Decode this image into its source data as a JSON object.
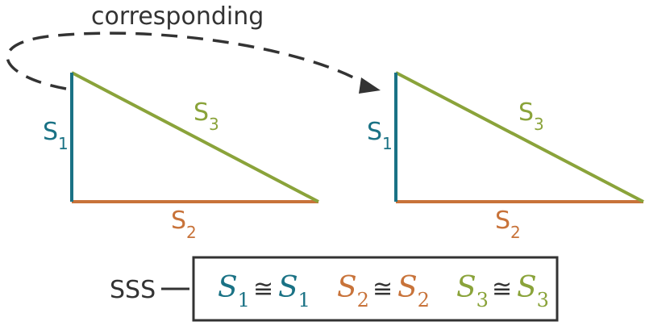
{
  "colors": {
    "s1": "#1a7285",
    "s2": "#c8733a",
    "s3": "#8aa33a",
    "ink": "#333333"
  },
  "arrow_label": "corresponding",
  "triangles": [
    {
      "sides": [
        {
          "letter": "S",
          "sub": "1"
        },
        {
          "letter": "S",
          "sub": "2"
        },
        {
          "letter": "S",
          "sub": "3"
        }
      ]
    },
    {
      "sides": [
        {
          "letter": "S",
          "sub": "1"
        },
        {
          "letter": "S",
          "sub": "2"
        },
        {
          "letter": "S",
          "sub": "3"
        }
      ]
    }
  ],
  "criterion": "SSS",
  "congruences": [
    {
      "left": "S",
      "left_sub": "1",
      "symbol": "≅",
      "right": "S",
      "right_sub": "1"
    },
    {
      "left": "S",
      "left_sub": "2",
      "symbol": "≅",
      "right": "S",
      "right_sub": "2"
    },
    {
      "left": "S",
      "left_sub": "3",
      "symbol": "≅",
      "right": "S",
      "right_sub": "3"
    }
  ],
  "icons": {
    "arrow": "dashed-curved-arrow-icon"
  }
}
